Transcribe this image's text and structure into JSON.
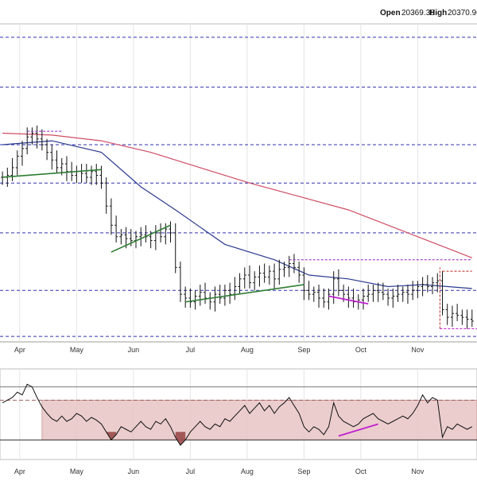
{
  "header": {
    "open_label": "Open",
    "open_value": "20369.38",
    "high_label": "High",
    "high_value": "20370.96"
  },
  "colors": {
    "bar": "#111111",
    "ma_short": "#2b3a8f",
    "ma_long": "#cf4c65",
    "trend_green": "#2e7d32",
    "divergence": "#c020d0",
    "resistance_dash": "#9020c0",
    "red_dash": "#c02020",
    "level_dash": "#3030b0",
    "rsi_band_fill": "#e8c4c4",
    "rsi_oversold_fill": "#9a4a4a",
    "grid": "#e4e4e4"
  },
  "chart_data": [
    {
      "type": "ohlc",
      "panel": "price",
      "x_axis_labels": [
        "Apr",
        "May",
        "Jun",
        "Jul",
        "Aug",
        "Sep",
        "Oct",
        "Nov"
      ],
      "close_path": [
        [
          0,
          55
        ],
        [
          1,
          56
        ],
        [
          2,
          60
        ],
        [
          3,
          66
        ],
        [
          4,
          70
        ],
        [
          5,
          76
        ],
        [
          6,
          78
        ],
        [
          7,
          75
        ],
        [
          8,
          72
        ],
        [
          9,
          68
        ],
        [
          10,
          64
        ],
        [
          11,
          60
        ],
        [
          12,
          62
        ],
        [
          13,
          58
        ],
        [
          14,
          56
        ],
        [
          15,
          58
        ],
        [
          16,
          57
        ],
        [
          17,
          55
        ],
        [
          18,
          58
        ],
        [
          19,
          56
        ],
        [
          20,
          52
        ],
        [
          21,
          40
        ],
        [
          22,
          30
        ],
        [
          23,
          24
        ],
        [
          24,
          25
        ],
        [
          25,
          23
        ],
        [
          26,
          22
        ],
        [
          27,
          24
        ],
        [
          28,
          25
        ],
        [
          29,
          24
        ],
        [
          30,
          22
        ],
        [
          31,
          26
        ],
        [
          32,
          24
        ],
        [
          33,
          28
        ],
        [
          34,
          26
        ],
        [
          35,
          8
        ],
        [
          36,
          -6
        ],
        [
          37,
          -8
        ],
        [
          38,
          -10
        ],
        [
          39,
          -7
        ],
        [
          40,
          -5
        ],
        [
          41,
          -8
        ],
        [
          42,
          -10
        ],
        [
          43,
          -6
        ],
        [
          44,
          -8
        ],
        [
          45,
          -4
        ],
        [
          46,
          -6
        ],
        [
          47,
          -2
        ],
        [
          48,
          2
        ],
        [
          49,
          4
        ],
        [
          50,
          0
        ],
        [
          51,
          3
        ],
        [
          52,
          5
        ],
        [
          53,
          3
        ],
        [
          54,
          6
        ],
        [
          55,
          2
        ],
        [
          56,
          7
        ],
        [
          57,
          8
        ],
        [
          58,
          10
        ],
        [
          59,
          8
        ],
        [
          60,
          4
        ],
        [
          61,
          -4
        ],
        [
          62,
          -6
        ],
        [
          63,
          -5
        ],
        [
          64,
          -8
        ],
        [
          65,
          -10
        ],
        [
          66,
          -6
        ],
        [
          67,
          2
        ],
        [
          68,
          -4
        ],
        [
          69,
          -6
        ],
        [
          70,
          -8
        ],
        [
          71,
          -10
        ],
        [
          72,
          -9
        ],
        [
          73,
          -7
        ],
        [
          74,
          -6
        ],
        [
          75,
          -4
        ],
        [
          76,
          -5
        ],
        [
          77,
          -6
        ],
        [
          78,
          -8
        ],
        [
          79,
          -7
        ],
        [
          80,
          -6
        ],
        [
          81,
          -5
        ],
        [
          82,
          -6
        ],
        [
          83,
          -4
        ],
        [
          84,
          -2
        ],
        [
          85,
          -1
        ],
        [
          86,
          -2
        ],
        [
          87,
          0
        ],
        [
          88,
          1
        ],
        [
          89,
          -14
        ],
        [
          90,
          -18
        ],
        [
          91,
          -16
        ],
        [
          92,
          -17
        ],
        [
          93,
          -18
        ],
        [
          94,
          -19
        ],
        [
          95,
          -20
        ]
      ],
      "moving_averages": [
        {
          "role": "short",
          "values": [
            [
              0,
              72
            ],
            [
              10,
              74
            ],
            [
              20,
              68
            ],
            [
              28,
              50
            ],
            [
              35,
              38
            ],
            [
              45,
              20
            ],
            [
              55,
              12
            ],
            [
              62,
              4
            ],
            [
              70,
              2
            ],
            [
              78,
              -2
            ],
            [
              85,
              -1
            ],
            [
              95,
              -3
            ]
          ]
        },
        {
          "role": "long",
          "values": [
            [
              0,
              78
            ],
            [
              10,
              77
            ],
            [
              20,
              74
            ],
            [
              30,
              68
            ],
            [
              40,
              60
            ],
            [
              50,
              52
            ],
            [
              60,
              45
            ],
            [
              70,
              38
            ],
            [
              80,
              28
            ],
            [
              90,
              18
            ],
            [
              95,
              13
            ]
          ]
        }
      ],
      "horizontal_levels": [
        128,
        102,
        72,
        52,
        26,
        -4,
        -28
      ],
      "trendlines": [
        {
          "kind": "support",
          "from": [
            0,
            55
          ],
          "to": [
            20,
            59
          ]
        },
        {
          "kind": "support",
          "from": [
            22,
            16
          ],
          "to": [
            34,
            30
          ]
        },
        {
          "kind": "support",
          "from": [
            37,
            -10
          ],
          "to": [
            61,
            -1
          ]
        },
        {
          "kind": "divergence",
          "from": [
            66,
            -7
          ],
          "to": [
            74,
            -11
          ]
        },
        {
          "kind": "resistance",
          "from": [
            58,
            12
          ],
          "to": [
            95,
            12
          ]
        },
        {
          "kind": "resistance",
          "from": [
            5,
            79
          ],
          "to": [
            12,
            79
          ]
        },
        {
          "kind": "red",
          "from": [
            89,
            6
          ],
          "to": [
            95,
            6
          ]
        }
      ],
      "ylim": [
        -30,
        135
      ],
      "xlim": [
        -0.5,
        96
      ]
    },
    {
      "type": "line",
      "panel": "rsi",
      "x_axis_labels": [
        "Apr",
        "May",
        "Jun",
        "Jul",
        "Aug",
        "Sep",
        "Oct",
        "Nov"
      ],
      "values": [
        [
          0,
          58
        ],
        [
          1,
          60
        ],
        [
          2,
          62
        ],
        [
          3,
          66
        ],
        [
          4,
          64
        ],
        [
          5,
          72
        ],
        [
          6,
          70
        ],
        [
          7,
          62
        ],
        [
          8,
          55
        ],
        [
          9,
          50
        ],
        [
          10,
          46
        ],
        [
          11,
          44
        ],
        [
          12,
          48
        ],
        [
          13,
          44
        ],
        [
          14,
          46
        ],
        [
          15,
          50
        ],
        [
          16,
          48
        ],
        [
          17,
          44
        ],
        [
          18,
          47
        ],
        [
          19,
          45
        ],
        [
          20,
          42
        ],
        [
          21,
          36
        ],
        [
          22,
          30
        ],
        [
          23,
          34
        ],
        [
          24,
          40
        ],
        [
          25,
          38
        ],
        [
          26,
          36
        ],
        [
          27,
          40
        ],
        [
          28,
          44
        ],
        [
          29,
          40
        ],
        [
          30,
          38
        ],
        [
          31,
          44
        ],
        [
          32,
          42
        ],
        [
          33,
          46
        ],
        [
          34,
          40
        ],
        [
          35,
          32
        ],
        [
          36,
          26
        ],
        [
          37,
          30
        ],
        [
          38,
          36
        ],
        [
          39,
          40
        ],
        [
          40,
          44
        ],
        [
          41,
          40
        ],
        [
          42,
          38
        ],
        [
          43,
          42
        ],
        [
          44,
          40
        ],
        [
          45,
          46
        ],
        [
          46,
          44
        ],
        [
          47,
          48
        ],
        [
          48,
          52
        ],
        [
          49,
          56
        ],
        [
          50,
          50
        ],
        [
          51,
          54
        ],
        [
          52,
          58
        ],
        [
          53,
          52
        ],
        [
          54,
          56
        ],
        [
          55,
          50
        ],
        [
          56,
          55
        ],
        [
          57,
          58
        ],
        [
          58,
          62
        ],
        [
          59,
          56
        ],
        [
          60,
          50
        ],
        [
          61,
          40
        ],
        [
          62,
          36
        ],
        [
          63,
          40
        ],
        [
          64,
          38
        ],
        [
          65,
          34
        ],
        [
          66,
          40
        ],
        [
          67,
          58
        ],
        [
          68,
          48
        ],
        [
          69,
          44
        ],
        [
          70,
          42
        ],
        [
          71,
          40
        ],
        [
          72,
          42
        ],
        [
          73,
          46
        ],
        [
          74,
          48
        ],
        [
          75,
          50
        ],
        [
          76,
          46
        ],
        [
          77,
          44
        ],
        [
          78,
          42
        ],
        [
          79,
          44
        ],
        [
          80,
          46
        ],
        [
          81,
          48
        ],
        [
          82,
          46
        ],
        [
          83,
          50
        ],
        [
          84,
          56
        ],
        [
          85,
          64
        ],
        [
          86,
          58
        ],
        [
          87,
          62
        ],
        [
          88,
          60
        ],
        [
          89,
          32
        ],
        [
          90,
          40
        ],
        [
          91,
          38
        ],
        [
          92,
          42
        ],
        [
          93,
          40
        ],
        [
          94,
          38
        ],
        [
          95,
          40
        ]
      ],
      "reference_levels": [
        70,
        60,
        30
      ],
      "shaded_band": [
        30,
        60
      ],
      "divergence_line": {
        "from": [
          68,
          33
        ],
        "to": [
          76,
          42
        ]
      },
      "ylim": [
        20,
        80
      ],
      "xlim": [
        -0.5,
        96
      ]
    }
  ]
}
